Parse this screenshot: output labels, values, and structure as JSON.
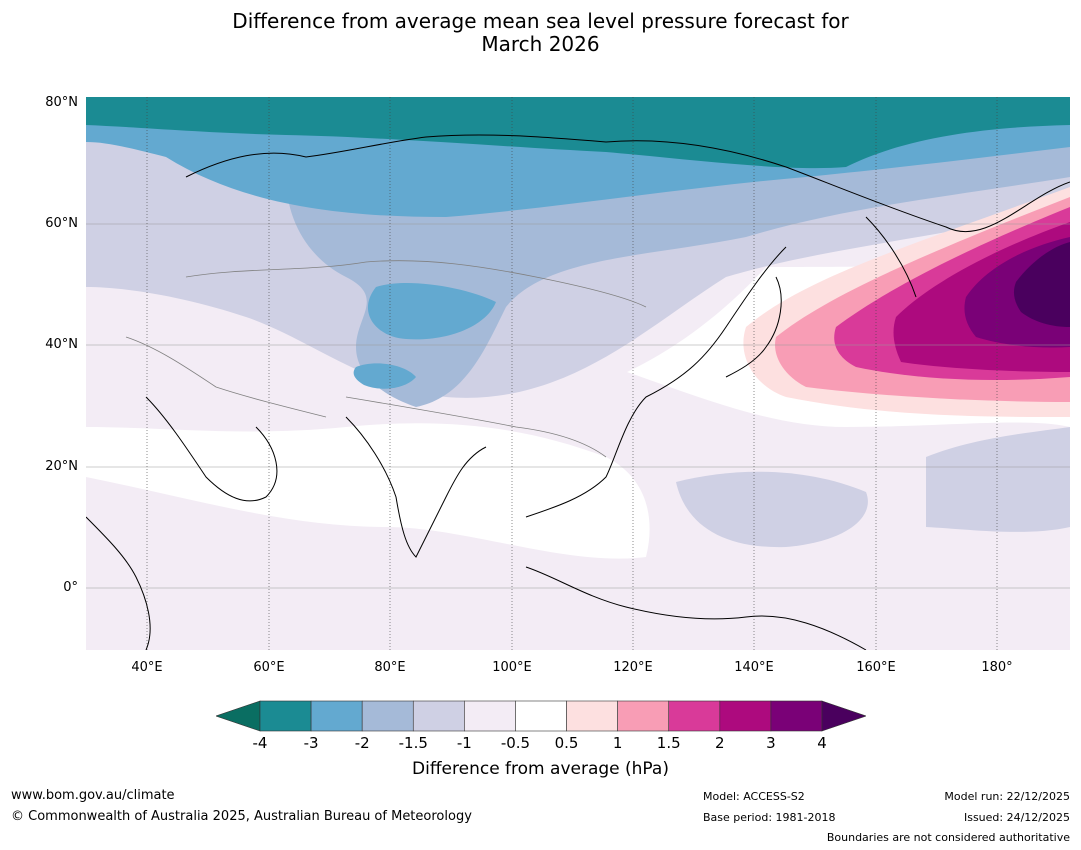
{
  "title_line1": "Difference from average mean sea level pressure forecast for",
  "title_line2": "March 2026",
  "lat_labels": [
    "80°N",
    "60°N",
    "40°N",
    "20°N",
    "0°"
  ],
  "lon_labels": [
    "40°E",
    "60°E",
    "80°E",
    "100°E",
    "120°E",
    "140°E",
    "160°E",
    "180°"
  ],
  "map_extent": {
    "lon_min": 30,
    "lon_max": 192,
    "lat_min": -10,
    "lat_max": 80
  },
  "colorbar": {
    "labels": [
      "-4",
      "-3",
      "-2",
      "-1.5",
      "-1",
      "-0.5",
      "0.5",
      "1",
      "1.5",
      "2",
      "3",
      "4"
    ],
    "colors": [
      "#1b8b93",
      "#63a9d0",
      "#a5bad8",
      "#cfd0e4",
      "#f3ecf5",
      "#ffffff",
      "#fde0e0",
      "#f89db5",
      "#d93a99",
      "#ad0a7e",
      "#7a0177",
      "#4a005e"
    ],
    "under_color": "#0a6e62",
    "over_color": "#4a005e",
    "title": "Difference from average (hPa)"
  },
  "footer": {
    "website": "www.bom.gov.au/climate",
    "copyright": "© Commonwealth of Australia 2025, Australian Bureau of Meteorology",
    "model": "Model: ACCESS-S2",
    "base_period": "Base period: 1981-2018",
    "model_run": "Model run: 22/12/2025",
    "issued": "Issued: 24/12/2025",
    "disclaimer": "Boundaries are not considered authoritative"
  }
}
